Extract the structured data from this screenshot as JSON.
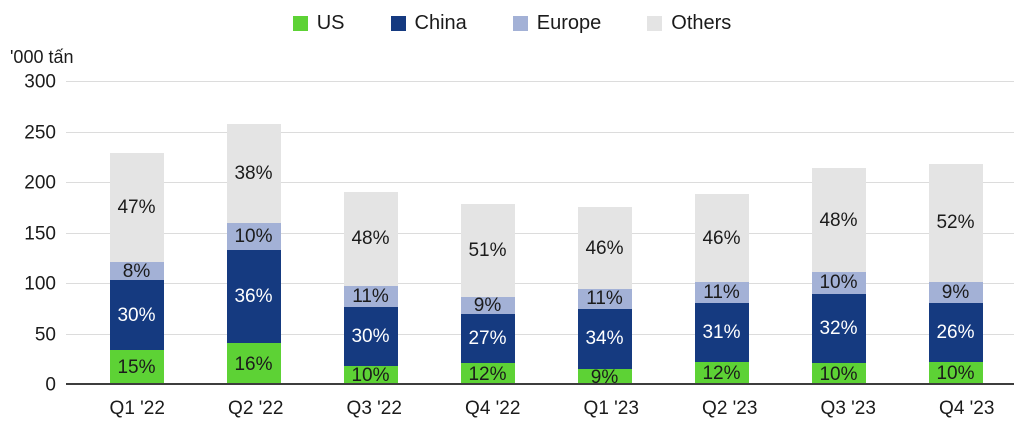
{
  "chart_data": {
    "type": "bar",
    "stacked": true,
    "title": "",
    "ylabel": "'000 tấn",
    "xlabel": "",
    "ylim": [
      0,
      300
    ],
    "yticks": [
      0,
      50,
      100,
      150,
      200,
      250,
      300
    ],
    "grid": true,
    "legend_position": "top-center",
    "categories": [
      "Q1 '22",
      "Q2 '22",
      "Q3 '22",
      "Q4 '22",
      "Q1 '23",
      "Q2 '23",
      "Q3 '23",
      "Q4 '23"
    ],
    "totals_estimated_000_tan": [
      230,
      258,
      193,
      181,
      176,
      189,
      215,
      226
    ],
    "series": [
      {
        "key": "us",
        "name": "US",
        "color": "#5dd235",
        "label_color": "#1b1b1b",
        "pct": [
          15,
          16,
          10,
          12,
          9,
          12,
          10,
          10
        ],
        "labels": [
          "15%",
          "16%",
          "10%",
          "12%",
          "9%",
          "12%",
          "10%",
          "10%"
        ]
      },
      {
        "key": "china",
        "name": "China",
        "color": "#153a80",
        "label_color": "#ffffff",
        "pct": [
          30,
          36,
          30,
          27,
          34,
          31,
          32,
          26
        ],
        "labels": [
          "30%",
          "36%",
          "30%",
          "27%",
          "34%",
          "31%",
          "32%",
          "26%"
        ]
      },
      {
        "key": "europe",
        "name": "Europe",
        "color": "#a3b1d6",
        "label_color": "#1b1b1b",
        "pct": [
          8,
          10,
          11,
          9,
          11,
          11,
          10,
          9
        ],
        "labels": [
          "8%",
          "10%",
          "11%",
          "9%",
          "11%",
          "11%",
          "10%",
          "9%"
        ]
      },
      {
        "key": "others",
        "name": "Others",
        "color": "#e4e4e4",
        "label_color": "#1b1b1b",
        "pct": [
          47,
          38,
          48,
          51,
          46,
          46,
          48,
          52
        ],
        "labels": [
          "47%",
          "38%",
          "48%",
          "51%",
          "46%",
          "46%",
          "48%",
          "52%"
        ]
      }
    ],
    "colors": {
      "grid": "#dcdcdc",
      "baseline": "#3d3d3d",
      "text": "#1b1b1b"
    }
  }
}
